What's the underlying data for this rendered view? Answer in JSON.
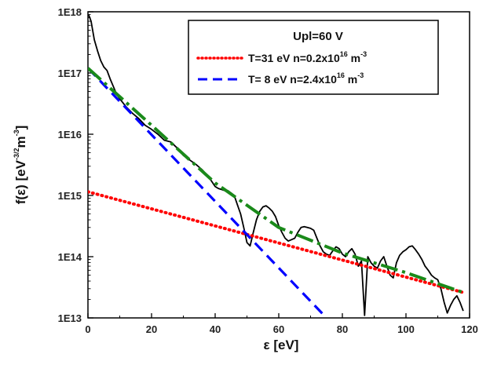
{
  "chart_data": {
    "type": "line",
    "xlabel": "ε  [eV]",
    "ylabel_main": "f(ε)  [eV",
    "ylabel_sup1": "-3/2",
    "ylabel_mid": "m",
    "ylabel_sup2": "-3",
    "ylabel_end": "]",
    "xlim": [
      0,
      120
    ],
    "ylim": [
      10000000000000.0,
      1e+18
    ],
    "yscale": "log",
    "grid": false,
    "x_ticks": [
      0,
      20,
      40,
      60,
      80,
      100,
      120
    ],
    "x_tick_labels": [
      "0",
      "20",
      "40",
      "60",
      "80",
      "100",
      "120"
    ],
    "y_ticks": [
      10000000000000.0,
      100000000000000.0,
      1000000000000000.0,
      1e+16,
      1e+17,
      1e+18
    ],
    "y_tick_labels": [
      "1E13",
      "1E14",
      "1E15",
      "1E16",
      "1E17",
      "1E18"
    ],
    "legend": {
      "placement": "top-right",
      "title": "Upl=60 V",
      "entries": [
        {
          "label_main": "T=31 eV  n=0.2x10",
          "sup1": "16",
          "label_mid": " m",
          "sup2": "-3",
          "color": "#ff0000",
          "style": "dotted"
        },
        {
          "label_main": "T=  8 eV  n=2.4x10",
          "sup1": "16",
          "label_mid": " m",
          "sup2": "-3",
          "color": "#0000ff",
          "style": "dashed"
        }
      ]
    },
    "series": [
      {
        "color": "#000000",
        "style": "solid",
        "x": [
          0.2,
          1,
          2,
          3,
          4,
          5,
          6,
          7,
          8,
          9,
          10,
          12,
          14,
          16,
          18,
          20,
          22,
          24,
          26,
          28,
          30,
          32,
          34,
          36,
          38,
          40,
          41,
          42,
          43,
          44,
          45,
          46,
          47,
          48,
          49,
          50,
          51,
          52,
          53,
          54,
          55,
          56,
          57,
          58,
          59,
          60,
          61,
          62,
          63,
          64,
          65,
          66,
          67,
          68,
          69,
          70,
          71,
          72,
          73,
          74,
          75,
          76,
          77,
          78,
          79,
          80,
          81,
          82,
          83,
          84,
          85,
          86,
          87,
          88,
          89,
          90,
          91,
          92,
          93,
          94,
          95,
          96,
          97,
          98,
          99,
          100,
          101,
          102,
          103,
          104,
          105,
          106,
          107,
          108,
          109,
          110,
          111,
          112,
          113,
          114,
          115,
          116,
          117,
          118
        ],
        "y": [
          9e+17,
          7e+17,
          3.5e+17,
          2.3e+17,
          1.6e+17,
          1.25e+17,
          1.1e+17,
          8e+16,
          6e+16,
          4.5e+16,
          3.8e+16,
          2.8e+16,
          2.2e+16,
          1.8e+16,
          1.4e+16,
          1.2e+16,
          1e+16,
          8000000000000000.0,
          7500000000000000.0,
          6000000000000000.0,
          4500000000000000.0,
          3800000000000000.0,
          3200000000000000.0,
          2600000000000000.0,
          2000000000000000.0,
          1400000000000000.0,
          1300000000000000.0,
          1250000000000000.0,
          1200000000000000.0,
          1200000000000000.0,
          1100000000000000.0,
          1000000000000000.0,
          700000000000000.0,
          500000000000000.0,
          300000000000000.0,
          170000000000000.0,
          150000000000000.0,
          250000000000000.0,
          400000000000000.0,
          550000000000000.0,
          650000000000000.0,
          680000000000000.0,
          620000000000000.0,
          550000000000000.0,
          450000000000000.0,
          320000000000000.0,
          250000000000000.0,
          200000000000000.0,
          180000000000000.0,
          190000000000000.0,
          200000000000000.0,
          250000000000000.0,
          300000000000000.0,
          310000000000000.0,
          300000000000000.0,
          290000000000000.0,
          270000000000000.0,
          200000000000000.0,
          150000000000000.0,
          120000000000000.0,
          110000000000000.0,
          105000000000000.0,
          125000000000000.0,
          145000000000000.0,
          135000000000000.0,
          110000000000000.0,
          100000000000000.0,
          120000000000000.0,
          135000000000000.0,
          110000000000000.0,
          70000000000000.0,
          85000000000000.0,
          11000000000000.0,
          100000000000000.0,
          80000000000000.0,
          70000000000000.0,
          65000000000000.0,
          85000000000000.0,
          100000000000000.0,
          70000000000000.0,
          50000000000000.0,
          45000000000000.0,
          80000000000000.0,
          105000000000000.0,
          120000000000000.0,
          130000000000000.0,
          145000000000000.0,
          150000000000000.0,
          130000000000000.0,
          110000000000000.0,
          90000000000000.0,
          70000000000000.0,
          60000000000000.0,
          50000000000000.0,
          45000000000000.0,
          42000000000000.0,
          30000000000000.0,
          18000000000000.0,
          12000000000000.0,
          16000000000000.0,
          20000000000000.0,
          23000000000000.0,
          18000000000000.0,
          13000000000000.0
        ]
      },
      {
        "color": "#ff0000",
        "style": "dotted",
        "x": [
          0,
          118
        ],
        "y": [
          1150000000000000.0,
          26000000000000.0
        ]
      },
      {
        "color": "#0000ff",
        "style": "dashed",
        "x": [
          0,
          75
        ],
        "y": [
          1.2e+17,
          10000000000000.0
        ]
      },
      {
        "color": "#1a8a1a",
        "style": "dash-dot",
        "x": [
          0,
          20,
          40,
          60,
          80,
          100,
          118
        ],
        "y": [
          1.2e+17,
          1.4e+16,
          1600000000000000.0,
          300000000000000.0,
          115000000000000.0,
          55000000000000.0,
          26000000000000.0
        ]
      }
    ]
  }
}
